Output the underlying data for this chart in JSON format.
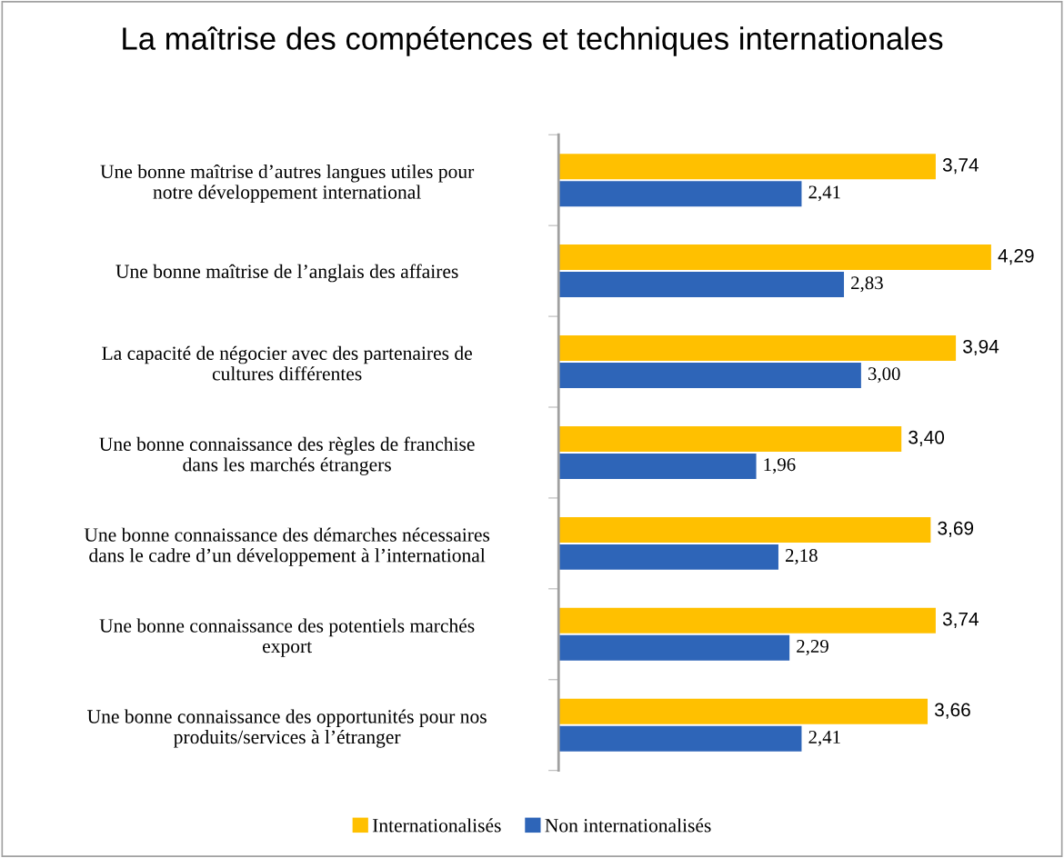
{
  "chart_data": {
    "type": "bar",
    "orientation": "horizontal",
    "title": "La maîtrise des compétences et techniques internationales",
    "categories": [
      "Une bonne maîtrise d’autres langues utiles pour\nnotre développement international",
      "Une bonne maîtrise de l’anglais des affaires",
      "La capacité de négocier avec des partenaires de\ncultures différentes",
      "Une bonne connaissance des règles de franchise\ndans les marchés étrangers",
      "Une bonne connaissance des démarches nécessaires\ndans le cadre d’un développement à l’international",
      "Une bonne connaissance des potentiels marchés\nexport",
      "Une bonne connaissance des opportunités pour nos\nproduits/services à l’étranger"
    ],
    "series": [
      {
        "name": "Internationalisés",
        "color": "#ffc000",
        "values": [
          3.74,
          4.29,
          3.94,
          3.4,
          3.69,
          3.74,
          3.66
        ],
        "value_labels": [
          "3,74",
          "4,29",
          "3,94",
          "3,40",
          "3,69",
          "3,74",
          "3,66"
        ]
      },
      {
        "name": "Non internationalisés",
        "color": "#2e65b8",
        "values": [
          2.41,
          2.83,
          3.0,
          1.96,
          2.18,
          2.29,
          2.41
        ],
        "value_labels": [
          "2,41",
          "2,83",
          "3,00",
          "1,96",
          "2,18",
          "2,29",
          "2,41"
        ]
      }
    ],
    "legend": "bottom",
    "grid": false
  }
}
